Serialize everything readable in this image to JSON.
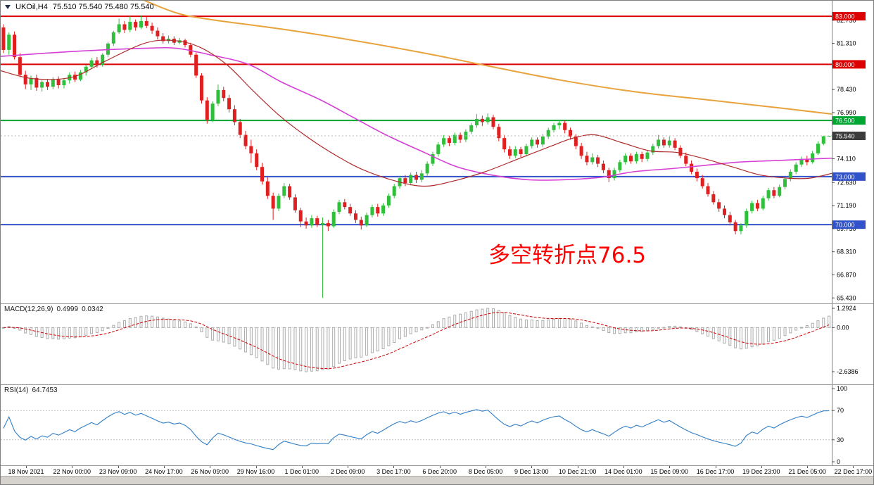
{
  "header": {
    "symbol_period": "UKOil,H4",
    "ohlc": "75.510 75.540 75.480 75.540",
    "dropdown_icon": "triangle-down"
  },
  "annotation": {
    "text": "多空转折点76.5",
    "color": "#FF0000"
  },
  "macd_panel": {
    "label": "MACD(12,26,9)",
    "value_main": "0.4999",
    "value_signal": "0.0342",
    "axis_labels": [
      "1.2924",
      "0.00",
      "-2.6386"
    ]
  },
  "rsi_panel": {
    "label": "RSI(14)",
    "value": "64.7453",
    "axis_labels": [
      "100",
      "70",
      "30",
      "0"
    ],
    "axis_values": [
      100,
      70,
      30,
      0
    ],
    "levels": [
      70,
      30
    ]
  },
  "chart_data": {
    "type": "candlestick",
    "title": "UKOil H4 with MACD(12,26,9) and RSI(14)",
    "symbol": "UKOil",
    "timeframe": "H4",
    "ylim": [
      65.09,
      83.97
    ],
    "up_color": "#2FBF3A",
    "down_color": "#E02020",
    "price_axis_ticks": [
      {
        "v": 82.75,
        "label": "82.750"
      },
      {
        "v": 81.31,
        "label": "81.310"
      },
      {
        "v": 78.43,
        "label": "78.430"
      },
      {
        "v": 76.99,
        "label": "76.990"
      },
      {
        "v": 74.11,
        "label": "74.110"
      },
      {
        "v": 72.63,
        "label": "72.630"
      },
      {
        "v": 71.19,
        "label": "71.190"
      },
      {
        "v": 69.75,
        "label": "69.750"
      },
      {
        "v": 68.31,
        "label": "68.310"
      },
      {
        "v": 66.87,
        "label": "66.870"
      },
      {
        "v": 65.43,
        "label": "65.430"
      }
    ],
    "levels": [
      {
        "price": 83.0,
        "label": "83.000",
        "color": "#DD0000"
      },
      {
        "price": 80.0,
        "label": "80.000",
        "color": "#DD0000"
      },
      {
        "price": 76.5,
        "label": "76.500",
        "color": "#00A532"
      },
      {
        "price": 73.0,
        "label": "73.000",
        "color": "#3152C8"
      },
      {
        "price": 70.0,
        "label": "70.000",
        "color": "#3152C8"
      }
    ],
    "current_price": {
      "value": 75.54,
      "label": "75.540",
      "color": "#3C3C3C"
    },
    "candles": [
      [
        82.3,
        82.5,
        80.7,
        80.9
      ],
      [
        80.9,
        82.0,
        80.6,
        81.85
      ],
      [
        81.85,
        82.05,
        80.3,
        80.45
      ],
      [
        80.45,
        80.7,
        79.2,
        79.35
      ],
      [
        79.35,
        79.6,
        78.45,
        78.75
      ],
      [
        78.75,
        79.3,
        78.4,
        79.15
      ],
      [
        79.15,
        79.35,
        78.35,
        78.55
      ],
      [
        78.55,
        79.0,
        78.3,
        78.9
      ],
      [
        78.9,
        79.1,
        78.4,
        78.6
      ],
      [
        78.6,
        79.2,
        78.45,
        79.05
      ],
      [
        79.05,
        79.25,
        78.5,
        78.7
      ],
      [
        78.7,
        79.15,
        78.5,
        79.0
      ],
      [
        79.0,
        79.5,
        78.8,
        79.35
      ],
      [
        79.35,
        79.55,
        78.9,
        79.05
      ],
      [
        79.05,
        79.65,
        78.95,
        79.5
      ],
      [
        79.5,
        79.95,
        79.3,
        79.85
      ],
      [
        79.85,
        80.4,
        79.7,
        80.25
      ],
      [
        80.25,
        80.45,
        79.8,
        79.95
      ],
      [
        79.95,
        80.7,
        79.85,
        80.6
      ],
      [
        80.6,
        81.4,
        80.45,
        81.3
      ],
      [
        81.3,
        82.1,
        81.15,
        82.0
      ],
      [
        82.0,
        82.85,
        81.9,
        82.5
      ],
      [
        82.5,
        82.7,
        81.95,
        82.15
      ],
      [
        82.15,
        83.0,
        82.0,
        82.65
      ],
      [
        82.65,
        82.8,
        82.1,
        82.3
      ],
      [
        82.3,
        83.05,
        82.2,
        82.7
      ],
      [
        82.7,
        82.95,
        82.25,
        82.4
      ],
      [
        82.4,
        82.6,
        81.9,
        82.1
      ],
      [
        82.1,
        82.3,
        81.55,
        81.75
      ],
      [
        81.75,
        81.95,
        81.3,
        81.45
      ],
      [
        81.45,
        81.8,
        81.3,
        81.6
      ],
      [
        81.6,
        81.75,
        81.2,
        81.35
      ],
      [
        81.35,
        81.65,
        81.25,
        81.5
      ],
      [
        81.5,
        81.6,
        81.05,
        81.2
      ],
      [
        81.2,
        81.35,
        80.45,
        80.6
      ],
      [
        80.6,
        80.75,
        79.15,
        79.3
      ],
      [
        79.3,
        79.45,
        77.55,
        77.75
      ],
      [
        77.75,
        77.95,
        76.3,
        76.55
      ],
      [
        76.55,
        77.7,
        76.4,
        77.55
      ],
      [
        77.55,
        78.75,
        77.4,
        78.4
      ],
      [
        78.4,
        78.6,
        77.7,
        77.9
      ],
      [
        77.9,
        78.1,
        77.0,
        77.2
      ],
      [
        77.2,
        77.45,
        76.2,
        76.4
      ],
      [
        76.4,
        76.6,
        75.4,
        75.6
      ],
      [
        75.6,
        75.85,
        74.7,
        74.9
      ],
      [
        74.9,
        75.3,
        73.85,
        74.45
      ],
      [
        74.45,
        74.7,
        73.4,
        73.6
      ],
      [
        73.6,
        73.85,
        72.5,
        72.7
      ],
      [
        72.7,
        72.95,
        71.6,
        71.8
      ],
      [
        71.8,
        72.0,
        70.3,
        71.0
      ],
      [
        71.0,
        71.95,
        70.85,
        71.8
      ],
      [
        71.8,
        72.6,
        71.65,
        72.4
      ],
      [
        72.4,
        72.55,
        71.55,
        71.7
      ],
      [
        71.7,
        71.9,
        70.75,
        70.9
      ],
      [
        70.9,
        71.05,
        69.85,
        70.2
      ],
      [
        70.2,
        70.45,
        69.75,
        69.95
      ],
      [
        69.95,
        70.6,
        69.8,
        70.4
      ],
      [
        70.4,
        70.55,
        69.85,
        70.0
      ],
      [
        70.0,
        70.45,
        65.43,
        70.1
      ],
      [
        70.1,
        70.3,
        69.6,
        69.9
      ],
      [
        69.9,
        70.95,
        69.8,
        70.8
      ],
      [
        70.8,
        71.55,
        70.65,
        71.4
      ],
      [
        71.4,
        71.6,
        70.95,
        71.1
      ],
      [
        71.1,
        71.3,
        70.55,
        70.7
      ],
      [
        70.7,
        70.9,
        70.1,
        70.3
      ],
      [
        70.3,
        70.5,
        69.7,
        69.95
      ],
      [
        69.95,
        70.75,
        69.85,
        70.6
      ],
      [
        70.6,
        71.25,
        70.45,
        71.1
      ],
      [
        71.1,
        71.3,
        70.5,
        70.7
      ],
      [
        70.7,
        71.35,
        70.55,
        71.2
      ],
      [
        71.2,
        71.95,
        71.05,
        71.8
      ],
      [
        71.8,
        72.55,
        71.65,
        72.4
      ],
      [
        72.4,
        73.05,
        72.25,
        72.9
      ],
      [
        72.9,
        73.1,
        72.4,
        72.6
      ],
      [
        72.6,
        73.25,
        72.45,
        73.1
      ],
      [
        73.1,
        73.3,
        72.6,
        72.8
      ],
      [
        72.8,
        73.4,
        72.65,
        73.2
      ],
      [
        73.2,
        73.95,
        73.05,
        73.8
      ],
      [
        73.8,
        74.55,
        73.65,
        74.4
      ],
      [
        74.4,
        75.15,
        74.25,
        75.0
      ],
      [
        75.0,
        75.6,
        74.85,
        75.4
      ],
      [
        75.4,
        75.55,
        74.9,
        75.1
      ],
      [
        75.1,
        75.75,
        74.95,
        75.6
      ],
      [
        75.6,
        75.75,
        75.1,
        75.3
      ],
      [
        75.3,
        75.95,
        75.15,
        75.8
      ],
      [
        75.8,
        76.35,
        75.65,
        76.2
      ],
      [
        76.2,
        76.9,
        76.05,
        76.6
      ],
      [
        76.6,
        76.8,
        76.15,
        76.4
      ],
      [
        76.4,
        76.95,
        76.25,
        76.7
      ],
      [
        76.7,
        76.85,
        75.95,
        76.1
      ],
      [
        76.1,
        76.3,
        75.2,
        75.4
      ],
      [
        75.4,
        75.6,
        74.5,
        74.7
      ],
      [
        74.7,
        74.9,
        74.1,
        74.3
      ],
      [
        74.3,
        74.9,
        74.15,
        74.7
      ],
      [
        74.7,
        74.85,
        74.2,
        74.4
      ],
      [
        74.4,
        75.05,
        74.25,
        74.9
      ],
      [
        74.9,
        75.45,
        74.75,
        75.3
      ],
      [
        75.3,
        75.45,
        74.8,
        75.0
      ],
      [
        75.0,
        75.65,
        74.85,
        75.5
      ],
      [
        75.5,
        76.05,
        75.35,
        75.9
      ],
      [
        75.9,
        76.35,
        75.75,
        76.2
      ],
      [
        76.2,
        76.5,
        75.95,
        76.35
      ],
      [
        76.35,
        76.5,
        75.7,
        75.9
      ],
      [
        75.9,
        76.05,
        75.3,
        75.5
      ],
      [
        75.5,
        75.65,
        74.7,
        74.9
      ],
      [
        74.9,
        75.1,
        74.1,
        74.3
      ],
      [
        74.3,
        74.55,
        73.7,
        73.9
      ],
      [
        73.9,
        74.45,
        73.75,
        74.2
      ],
      [
        74.2,
        74.35,
        73.6,
        73.8
      ],
      [
        73.8,
        74.0,
        73.2,
        73.4
      ],
      [
        73.4,
        73.55,
        72.66,
        72.9
      ],
      [
        72.9,
        73.55,
        72.75,
        73.4
      ],
      [
        73.4,
        74.05,
        73.25,
        73.9
      ],
      [
        73.9,
        74.45,
        73.75,
        74.3
      ],
      [
        74.3,
        74.45,
        73.8,
        73.95
      ],
      [
        73.95,
        74.55,
        73.8,
        74.4
      ],
      [
        74.4,
        74.55,
        73.9,
        74.1
      ],
      [
        74.1,
        74.65,
        73.95,
        74.5
      ],
      [
        74.5,
        75.05,
        74.35,
        74.9
      ],
      [
        74.9,
        75.6,
        74.75,
        75.3
      ],
      [
        75.3,
        75.45,
        74.8,
        74.95
      ],
      [
        74.95,
        75.5,
        74.8,
        75.25
      ],
      [
        75.25,
        75.4,
        74.65,
        74.8
      ],
      [
        74.8,
        74.95,
        74.15,
        74.3
      ],
      [
        74.3,
        74.5,
        73.65,
        73.8
      ],
      [
        73.8,
        74.0,
        73.15,
        73.3
      ],
      [
        73.3,
        73.5,
        72.7,
        72.9
      ],
      [
        72.9,
        73.1,
        72.25,
        72.4
      ],
      [
        72.4,
        72.6,
        71.75,
        71.9
      ],
      [
        71.9,
        72.1,
        71.25,
        71.4
      ],
      [
        71.4,
        71.6,
        70.8,
        71.0
      ],
      [
        71.0,
        71.2,
        70.4,
        70.6
      ],
      [
        70.6,
        70.8,
        69.95,
        70.15
      ],
      [
        70.15,
        70.3,
        69.4,
        69.6
      ],
      [
        69.6,
        70.1,
        69.4,
        69.95
      ],
      [
        69.95,
        71.0,
        69.8,
        70.85
      ],
      [
        70.85,
        71.5,
        70.7,
        71.35
      ],
      [
        71.35,
        71.55,
        70.85,
        71.0
      ],
      [
        71.0,
        71.8,
        70.9,
        71.65
      ],
      [
        71.65,
        72.3,
        71.5,
        72.15
      ],
      [
        72.15,
        72.35,
        71.65,
        71.8
      ],
      [
        71.8,
        72.5,
        71.7,
        72.35
      ],
      [
        72.35,
        73.0,
        72.2,
        72.85
      ],
      [
        72.85,
        73.45,
        72.7,
        73.3
      ],
      [
        73.3,
        73.9,
        73.15,
        73.75
      ],
      [
        73.75,
        74.25,
        73.6,
        74.1
      ],
      [
        74.1,
        74.3,
        73.7,
        73.9
      ],
      [
        73.9,
        74.6,
        73.8,
        74.45
      ],
      [
        74.45,
        75.2,
        74.35,
        75.05
      ],
      [
        75.05,
        75.55,
        74.95,
        75.51
      ],
      [
        75.51,
        75.54,
        75.48,
        75.54
      ]
    ],
    "moving_averages": [
      {
        "name": "ma-slow-orange",
        "color": "#E8A33D",
        "width": 2,
        "anchors": [
          [
            26,
            84.0
          ],
          [
            32,
            83.2
          ],
          [
            38,
            82.8
          ],
          [
            51,
            82.2
          ],
          [
            64,
            81.5
          ],
          [
            77,
            80.7
          ],
          [
            90,
            79.8
          ],
          [
            102,
            79.0
          ],
          [
            115,
            78.3
          ],
          [
            128,
            77.8
          ],
          [
            141,
            77.3
          ],
          [
            151,
            76.9
          ]
        ]
      },
      {
        "name": "ma-medium-magenta",
        "color": "#D53FD5",
        "width": 1.6,
        "anchors": [
          [
            0,
            80.5
          ],
          [
            13,
            80.8
          ],
          [
            26,
            81.0
          ],
          [
            32,
            81.0
          ],
          [
            38,
            80.6
          ],
          [
            45,
            80.0
          ],
          [
            51,
            78.9
          ],
          [
            58,
            77.8
          ],
          [
            64,
            76.7
          ],
          [
            70,
            75.6
          ],
          [
            77,
            74.5
          ],
          [
            83,
            73.6
          ],
          [
            90,
            73.05
          ],
          [
            96,
            72.8
          ],
          [
            102,
            72.8
          ],
          [
            109,
            72.95
          ],
          [
            115,
            73.3
          ],
          [
            122,
            73.5
          ],
          [
            128,
            73.7
          ],
          [
            134,
            73.9
          ],
          [
            141,
            74.0
          ],
          [
            151,
            74.15
          ]
        ]
      },
      {
        "name": "ma-fast-darkred",
        "color": "#AF2B2B",
        "width": 1.2,
        "anchors": [
          [
            0,
            79.6
          ],
          [
            6,
            79.1
          ],
          [
            13,
            79.2
          ],
          [
            19,
            80.2
          ],
          [
            26,
            81.3
          ],
          [
            31,
            81.5
          ],
          [
            36,
            81.1
          ],
          [
            41,
            80.0
          ],
          [
            46,
            78.3
          ],
          [
            51,
            76.7
          ],
          [
            56,
            75.4
          ],
          [
            61,
            74.3
          ],
          [
            66,
            73.4
          ],
          [
            72,
            72.7
          ],
          [
            77,
            72.4
          ],
          [
            82,
            72.7
          ],
          [
            88,
            73.3
          ],
          [
            94,
            74.1
          ],
          [
            100,
            74.9
          ],
          [
            104,
            75.4
          ],
          [
            108,
            75.6
          ],
          [
            113,
            75.1
          ],
          [
            118,
            74.6
          ],
          [
            123,
            74.5
          ],
          [
            128,
            74.1
          ],
          [
            133,
            73.6
          ],
          [
            138,
            73.1
          ],
          [
            143,
            72.9
          ],
          [
            147,
            72.9
          ],
          [
            151,
            73.2
          ]
        ]
      }
    ],
    "macd": {
      "fast": 12,
      "slow": 26,
      "signal": 9,
      "ymax": 1.2924,
      "ymin": -2.6386,
      "hist_color": "#ABABAB",
      "signal_color": "#CC0000"
    },
    "rsi": {
      "period": 14,
      "color": "#2F7EC7"
    },
    "time_labels": [
      "18 Nov 2021",
      "22 Nov 00:00",
      "23 Nov 09:00",
      "24 Nov 17:00",
      "26 Nov 09:00",
      "29 Nov 16:00",
      "1 Dec 01:00",
      "2 Dec 09:00",
      "3 Dec 17:00",
      "6 Dec 20:00",
      "8 Dec 05:00",
      "9 Dec 13:00",
      "10 Dec 21:00",
      "14 Dec 01:00",
      "15 Dec 09:00",
      "16 Dec 17:00",
      "19 Dec 23:00",
      "21 Dec 05:00",
      "22 Dec 17:00"
    ]
  }
}
